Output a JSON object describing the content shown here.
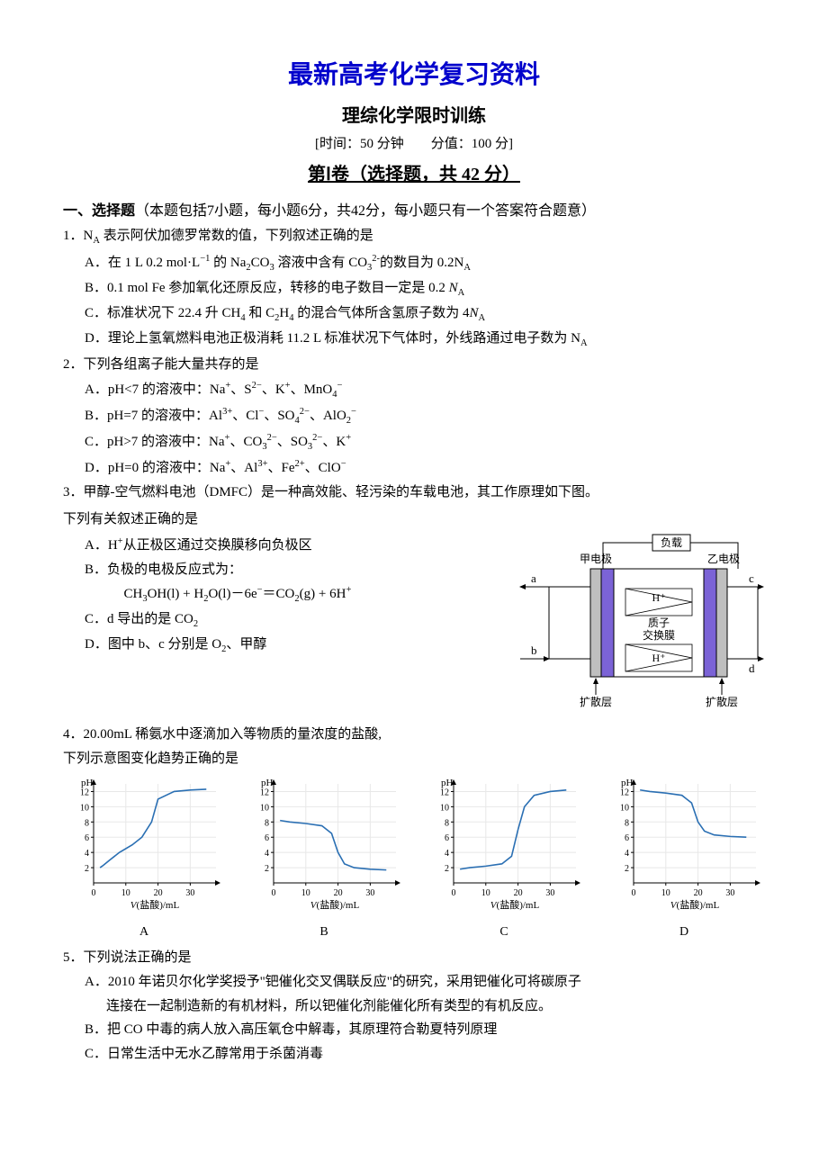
{
  "header": {
    "main_title": "最新高考化学复习资料",
    "subtitle": "理综化学限时训练",
    "info_line": "[时间：50 分钟　　分值：100 分]",
    "part_title": "第Ⅰ卷（选择题，共 42 分）"
  },
  "section1": {
    "label": "一、选择题",
    "desc": "（本题包括7小题，每小题6分，共42分，每小题只有一个答案符合题意）"
  },
  "q1": {
    "stem": "1．N<sub>A</sub> 表示阿伏加德罗常数的值，下列叙述正确的是",
    "A": "A．在 1 L 0.2 mol·L<sup>−1</sup> 的 Na<sub>2</sub>CO<sub>3</sub> 溶液中含有 CO<sub>3</sub><sup>2-</sup>的数目为 0.2N<sub>A</sub>",
    "B": "B．0.1 mol Fe 参加氧化还原反应，转移的电子数目一定是 0.2 <i>N</i><sub>A</sub>",
    "C": "C．标准状况下 22.4 升 CH<sub>4</sub> 和 C<sub>2</sub>H<sub>4</sub> 的混合气体所含氢原子数为 4<i>N</i><sub>A</sub>",
    "D": "D．理论上氢氧燃料电池正极消耗 11.2 L 标准状况下气体时，外线路通过电子数为 N<sub>A</sub>"
  },
  "q2": {
    "stem": "2．下列各组离子能大量共存的是",
    "A": "A．pH<7 的溶液中：Na<sup>+</sup>、S<sup>2−</sup>、K<sup>+</sup>、MnO<sub>4</sub><sup>−</sup>",
    "B": "B．pH=7 的溶液中：Al<sup>3+</sup>、Cl<sup>−</sup>、SO<sub>4</sub><sup>2−</sup>、AlO<sub>2</sub><sup>−</sup>",
    "C": "C．pH>7 的溶液中：Na<sup>+</sup>、CO<sub>3</sub><sup>2−</sup>、SO<sub>3</sub><sup>2−</sup>、K<sup>+</sup>",
    "D": "D．pH=0 的溶液中：Na<sup>+</sup>、Al<sup>3+</sup>、Fe<sup>2+</sup>、ClO<sup>−</sup>"
  },
  "q3": {
    "stem1": "3．甲醇-空气燃料电池（DMFC）是一种高效能、轻污染的车载电池，其工作原理如下图。",
    "stem2": "下列有关叙述正确的是",
    "A": "A．H<sup>+</sup>从正极区通过交换膜移向负极区",
    "B": "B．负极的电极反应式为：",
    "Beq": "CH<sub>3</sub>OH(l) + H<sub>2</sub>O(l)－6e<sup>−</sup>＝CO<sub>2</sub>(g) + 6H<sup>+</sup>",
    "C": "C．d 导出的是 CO<sub>2</sub>",
    "D": "D．图中 b、c 分别是 O<sub>2</sub>、甲醇"
  },
  "fuelcell": {
    "load_label": "负载",
    "electrode_left": "甲电极",
    "electrode_right": "乙电极",
    "a": "a",
    "b": "b",
    "c": "c",
    "d": "d",
    "h_plus": "H⁺",
    "membrane1": "质子",
    "membrane2": "交换膜",
    "diffusion": "扩散层",
    "colors": {
      "electrode_fill": "#7b63d6",
      "diffusion_fill": "#bfbfbf",
      "border": "#000000",
      "arrow": "#000000",
      "text": "#000000"
    }
  },
  "q4": {
    "stem1": "4．20.00mL 稀氨水中逐滴加入等物质的量浓度的盐酸,",
    "stem2": "下列示意图变化趋势正确的是"
  },
  "charts": {
    "ylabel": "pH",
    "xticks": [
      0,
      10,
      20,
      30
    ],
    "yticks": [
      2,
      4,
      6,
      8,
      10,
      12
    ],
    "xlabel_html": "<i>V</i>(盐酸)/mL",
    "line_color": "#2a6fb3",
    "grid_color": "#e8e8e8",
    "axis_color": "#000000",
    "tick_fontsize": 10,
    "label_fontsize": 11,
    "series": {
      "A": [
        [
          2,
          2
        ],
        [
          3,
          2.3
        ],
        [
          5,
          3
        ],
        [
          8,
          4
        ],
        [
          12,
          5
        ],
        [
          15,
          6
        ],
        [
          18,
          8
        ],
        [
          20,
          11
        ],
        [
          25,
          12
        ],
        [
          30,
          12.2
        ],
        [
          35,
          12.3
        ]
      ],
      "B": [
        [
          2,
          8.2
        ],
        [
          5,
          8
        ],
        [
          10,
          7.8
        ],
        [
          15,
          7.5
        ],
        [
          18,
          6.5
        ],
        [
          20,
          4
        ],
        [
          22,
          2.5
        ],
        [
          25,
          2
        ],
        [
          30,
          1.8
        ],
        [
          35,
          1.7
        ]
      ],
      "C": [
        [
          2,
          1.8
        ],
        [
          5,
          2
        ],
        [
          10,
          2.2
        ],
        [
          15,
          2.5
        ],
        [
          18,
          3.5
        ],
        [
          20,
          7
        ],
        [
          22,
          10
        ],
        [
          25,
          11.5
        ],
        [
          30,
          12
        ],
        [
          35,
          12.2
        ]
      ],
      "D": [
        [
          2,
          12.2
        ],
        [
          5,
          12
        ],
        [
          10,
          11.8
        ],
        [
          15,
          11.5
        ],
        [
          18,
          10.5
        ],
        [
          20,
          8
        ],
        [
          22,
          6.8
        ],
        [
          25,
          6.3
        ],
        [
          30,
          6.1
        ],
        [
          35,
          6
        ]
      ]
    },
    "labels": [
      "A",
      "B",
      "C",
      "D"
    ]
  },
  "q5": {
    "stem": "5．下列说法正确的是",
    "A1": "A．2010 年诺贝尔化学奖授予\"钯催化交叉偶联反应\"的研究，采用钯催化可将碳原子",
    "A2": "连接在一起制造新的有机材料，所以钯催化剂能催化所有类型的有机反应。",
    "B": "B．把 CO 中毒的病人放入高压氧仓中解毒，其原理符合勒夏特列原理",
    "C": "C．日常生活中无水乙醇常用于杀菌消毒"
  }
}
